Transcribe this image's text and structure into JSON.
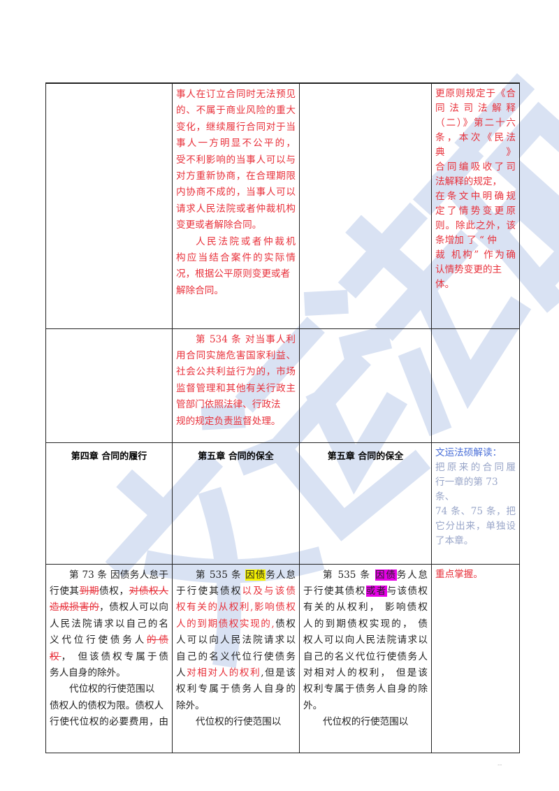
{
  "watermark": {
    "text": "文运法硕",
    "color": "#c9d6ee"
  },
  "colors": {
    "red": "#e8303a",
    "blue": "#4a6fd8",
    "gray_blue": "#98a5c8",
    "highlight_yellow": "#f6f200",
    "highlight_magenta": "#e600e6"
  },
  "page_number": "--",
  "rows": [
    {
      "cells": [
        {
          "lines": []
        },
        {
          "lines": [
            {
              "seg": [
                {
                  "t": "事人在订立合同时无法预见",
                  "s": "r"
                }
              ]
            },
            {
              "seg": [
                {
                  "t": "的、不属于商业风险的重大",
                  "s": "r"
                }
              ]
            },
            {
              "seg": [
                {
                  "t": "变化，继续履行合同对于当",
                  "s": "r"
                }
              ]
            },
            {
              "seg": [
                {
                  "t": "事人一方明显不公平的，",
                  "s": "r"
                }
              ]
            },
            {
              "seg": [
                {
                  "t": "受不利影响的当事人可以与",
                  "s": "r"
                }
              ]
            },
            {
              "seg": [
                {
                  "t": "对方重新协商，在合理期限",
                  "s": "r"
                }
              ]
            },
            {
              "seg": [
                {
                  "t": "内协商不成的，当事人可以",
                  "s": "r"
                }
              ]
            },
            {
              "seg": [
                {
                  "t": "请求人民法院或者仲裁机构",
                  "s": "r"
                }
              ]
            },
            {
              "seg": [
                {
                  "t": "变更或者解除合同。",
                  "s": "r"
                }
              ],
              "last": true
            },
            {
              "seg": [
                {
                  "t": "人民法院或者仲裁机",
                  "s": "r"
                }
              ],
              "ind": true
            },
            {
              "seg": [
                {
                  "t": "构应当结合案件的实际情",
                  "s": "r"
                }
              ]
            },
            {
              "seg": [
                {
                  "t": "况，根据公平原则变更或者",
                  "s": "r"
                }
              ],
              "last": true
            },
            {
              "seg": [
                {
                  "t": "解除合同。",
                  "s": "r"
                }
              ],
              "last": true
            }
          ]
        },
        {
          "lines": []
        },
        {
          "lines": [
            {
              "seg": [
                {
                  "t": "更原则规定于《合",
                  "s": "r"
                }
              ]
            },
            {
              "seg": [
                {
                  "t": "同 法 司 法 解 释",
                  "s": "r"
                }
              ]
            },
            {
              "seg": [
                {
                  "t": "（二）》第二十六",
                  "s": "r"
                }
              ]
            },
            {
              "seg": [
                {
                  "t": "条，本次《民法典》",
                  "s": "r"
                }
              ]
            },
            {
              "seg": [
                {
                  "t": "合同编吸收了司",
                  "s": "r"
                }
              ]
            },
            {
              "seg": [
                {
                  "t": "法解释的规定，",
                  "s": "r"
                }
              ],
              "last": true
            },
            {
              "seg": [
                {
                  "t": "在条文中明确规",
                  "s": "r"
                }
              ]
            },
            {
              "seg": [
                {
                  "t": "定了情势变更原",
                  "s": "r"
                }
              ]
            },
            {
              "seg": [
                {
                  "t": "则。除此之外，该",
                  "s": "r"
                }
              ]
            },
            {
              "seg": [
                {
                  "t": "条增加 了 “ 仲",
                  "s": "r"
                }
              ],
              "last": true
            },
            {
              "seg": [
                {
                  "t": "裁 机构” 作为确",
                  "s": "r"
                }
              ]
            },
            {
              "seg": [
                {
                  "t": "认情势变更的主",
                  "s": "r"
                }
              ],
              "last": true
            },
            {
              "seg": [
                {
                  "t": "体。",
                  "s": "r"
                }
              ],
              "last": true
            }
          ]
        }
      ]
    },
    {
      "cells": [
        {
          "lines": []
        },
        {
          "lines": [
            {
              "seg": [
                {
                  "t": "第 534 条 对当事人利",
                  "s": "r"
                }
              ],
              "ind": true
            },
            {
              "seg": [
                {
                  "t": "用合同实施危害国家利益、",
                  "s": "r"
                }
              ]
            },
            {
              "seg": [
                {
                  "t": "社会公共利益行为的，市场",
                  "s": "r"
                }
              ]
            },
            {
              "seg": [
                {
                  "t": "监督管理和其他有关行政主",
                  "s": "r"
                }
              ]
            },
            {
              "seg": [
                {
                  "t": "管部门依照法律、行政法",
                  "s": "r"
                }
              ],
              "last": true
            },
            {
              "seg": [
                {
                  "t": "规的规定负责监督处理。",
                  "s": "r"
                }
              ],
              "last": true
            }
          ]
        },
        {
          "lines": []
        },
        {
          "lines": []
        }
      ]
    },
    {
      "cells": [
        {
          "heading": "第四章  合同的履行"
        },
        {
          "heading": "第五章  合同的保全"
        },
        {
          "heading": "第五章  合同的保全"
        },
        {
          "lines": [
            {
              "seg": [
                {
                  "t": "文运法硕解读：",
                  "s": "b"
                }
              ],
              "last": true
            },
            {
              "seg": [
                {
                  "t": "把原来的合同履",
                  "s": "g"
                }
              ]
            },
            {
              "seg": [
                {
                  "t": "行一章的第  73",
                  "s": "g"
                }
              ],
              "last": true
            },
            {
              "seg": [
                {
                  "t": "条、",
                  "s": "g"
                }
              ],
              "last": true
            },
            {
              "seg": [
                {
                  "t": "74 条、75 条，把",
                  "s": "g"
                }
              ]
            },
            {
              "seg": [
                {
                  "t": "它分出来，单独设",
                  "s": "g"
                }
              ]
            },
            {
              "seg": [
                {
                  "t": "了本章。",
                  "s": "g"
                }
              ],
              "last": true
            }
          ]
        }
      ]
    },
    {
      "cells": [
        {
          "lines": [
            {
              "seg": [
                {
                  "t": "第 73 条 因债务人怠于",
                  "s": "k"
                }
              ],
              "ind": true
            },
            {
              "seg": [
                {
                  "t": "行使其",
                  "s": "k"
                },
                {
                  "t": "到期",
                  "s": "rs"
                },
                {
                  "t": "债权，",
                  "s": "k"
                },
                {
                  "t": "对债权人",
                  "s": "rs"
                }
              ]
            },
            {
              "seg": [
                {
                  "t": "造成损害的",
                  "s": "rs"
                },
                {
                  "t": "，债权人可以向",
                  "s": "k"
                }
              ]
            },
            {
              "seg": [
                {
                  "t": "人民法院请求以自己的名",
                  "s": "k"
                }
              ]
            },
            {
              "seg": [
                {
                  "t": "义代位行使债务人",
                  "s": "k"
                },
                {
                  "t": "的债",
                  "s": "rs"
                }
              ]
            },
            {
              "seg": [
                {
                  "t": "权",
                  "s": "rs"
                },
                {
                  "t": "，  但该债权专属于债",
                  "s": "k"
                }
              ]
            },
            {
              "seg": [
                {
                  "t": "务人自身的除外。",
                  "s": "k"
                }
              ],
              "last": true
            },
            {
              "seg": [
                {
                  "t": "代位权的行使范围以",
                  "s": "k"
                }
              ],
              "ind": true,
              "last": true
            },
            {
              "seg": [
                {
                  "t": "债权人的债权为限。债权人",
                  "s": "k"
                }
              ],
              "last": true
            },
            {
              "seg": [
                {
                  "t": "行使代位权的必要费用，由",
                  "s": "k"
                }
              ]
            }
          ]
        },
        {
          "lines": [
            {
              "seg": [
                {
                  "t": "第 535 条 ",
                  "s": "k"
                },
                {
                  "t": "因债",
                  "s": "hy"
                },
                {
                  "t": "务人怠",
                  "s": "k"
                }
              ],
              "ind": true
            },
            {
              "seg": [
                {
                  "t": "于行使其债权",
                  "s": "k"
                },
                {
                  "t": "以及与该债",
                  "s": "r"
                }
              ]
            },
            {
              "seg": [
                {
                  "t": "权有关的从权利,影响债权",
                  "s": "r"
                }
              ]
            },
            {
              "seg": [
                {
                  "t": "人的到期债权实现的,",
                  "s": "r"
                },
                {
                  "t": "债权",
                  "s": "k"
                }
              ]
            },
            {
              "seg": [
                {
                  "t": "人可以向人民法院请求以",
                  "s": "k"
                }
              ]
            },
            {
              "seg": [
                {
                  "t": "自己的名义代位行使债务",
                  "s": "k"
                }
              ]
            },
            {
              "seg": [
                {
                  "t": "人",
                  "s": "k"
                },
                {
                  "t": "对相对人的权利",
                  "s": "r"
                },
                {
                  "t": ",但是该",
                  "s": "k"
                }
              ]
            },
            {
              "seg": [
                {
                  "t": "权利专属于债务人自身的",
                  "s": "k"
                }
              ]
            },
            {
              "seg": [
                {
                  "t": "除外。",
                  "s": "k"
                }
              ],
              "last": true
            },
            {
              "seg": [
                {
                  "t": "代位权的行使范围以",
                  "s": "k"
                }
              ],
              "ind": true,
              "last": true
            }
          ]
        },
        {
          "lines": [
            {
              "seg": [
                {
                  "t": "第 535 条 ",
                  "s": "k"
                },
                {
                  "t": "因债",
                  "s": "hm"
                },
                {
                  "t": "务人怠",
                  "s": "k"
                }
              ],
              "ind": true
            },
            {
              "seg": [
                {
                  "t": "于行使其债权",
                  "s": "k"
                },
                {
                  "t": "或者",
                  "s": "hm"
                },
                {
                  "t": "与该债权",
                  "s": "k"
                }
              ]
            },
            {
              "seg": [
                {
                  "t": "有关的从权利，  影响债权",
                  "s": "k"
                }
              ]
            },
            {
              "seg": [
                {
                  "t": "人的到期债权实现的，  债",
                  "s": "k"
                }
              ]
            },
            {
              "seg": [
                {
                  "t": "权人可以向人民法院请求以",
                  "s": "k"
                }
              ]
            },
            {
              "seg": [
                {
                  "t": "自己的名义代位行使债务人",
                  "s": "k"
                }
              ]
            },
            {
              "seg": [
                {
                  "t": "对相对人的权利，  但是该",
                  "s": "k"
                }
              ]
            },
            {
              "seg": [
                {
                  "t": "权利专属于债务人自身的除",
                  "s": "k"
                }
              ]
            },
            {
              "seg": [
                {
                  "t": "外。",
                  "s": "k"
                }
              ],
              "last": true
            },
            {
              "seg": [
                {
                  "t": "代位权的行使范围以",
                  "s": "k"
                }
              ],
              "ind": true,
              "last": true
            }
          ]
        },
        {
          "lines": [
            {
              "seg": [
                {
                  "t": "重点掌握。",
                  "s": "r"
                }
              ],
              "last": true
            }
          ]
        }
      ]
    }
  ]
}
